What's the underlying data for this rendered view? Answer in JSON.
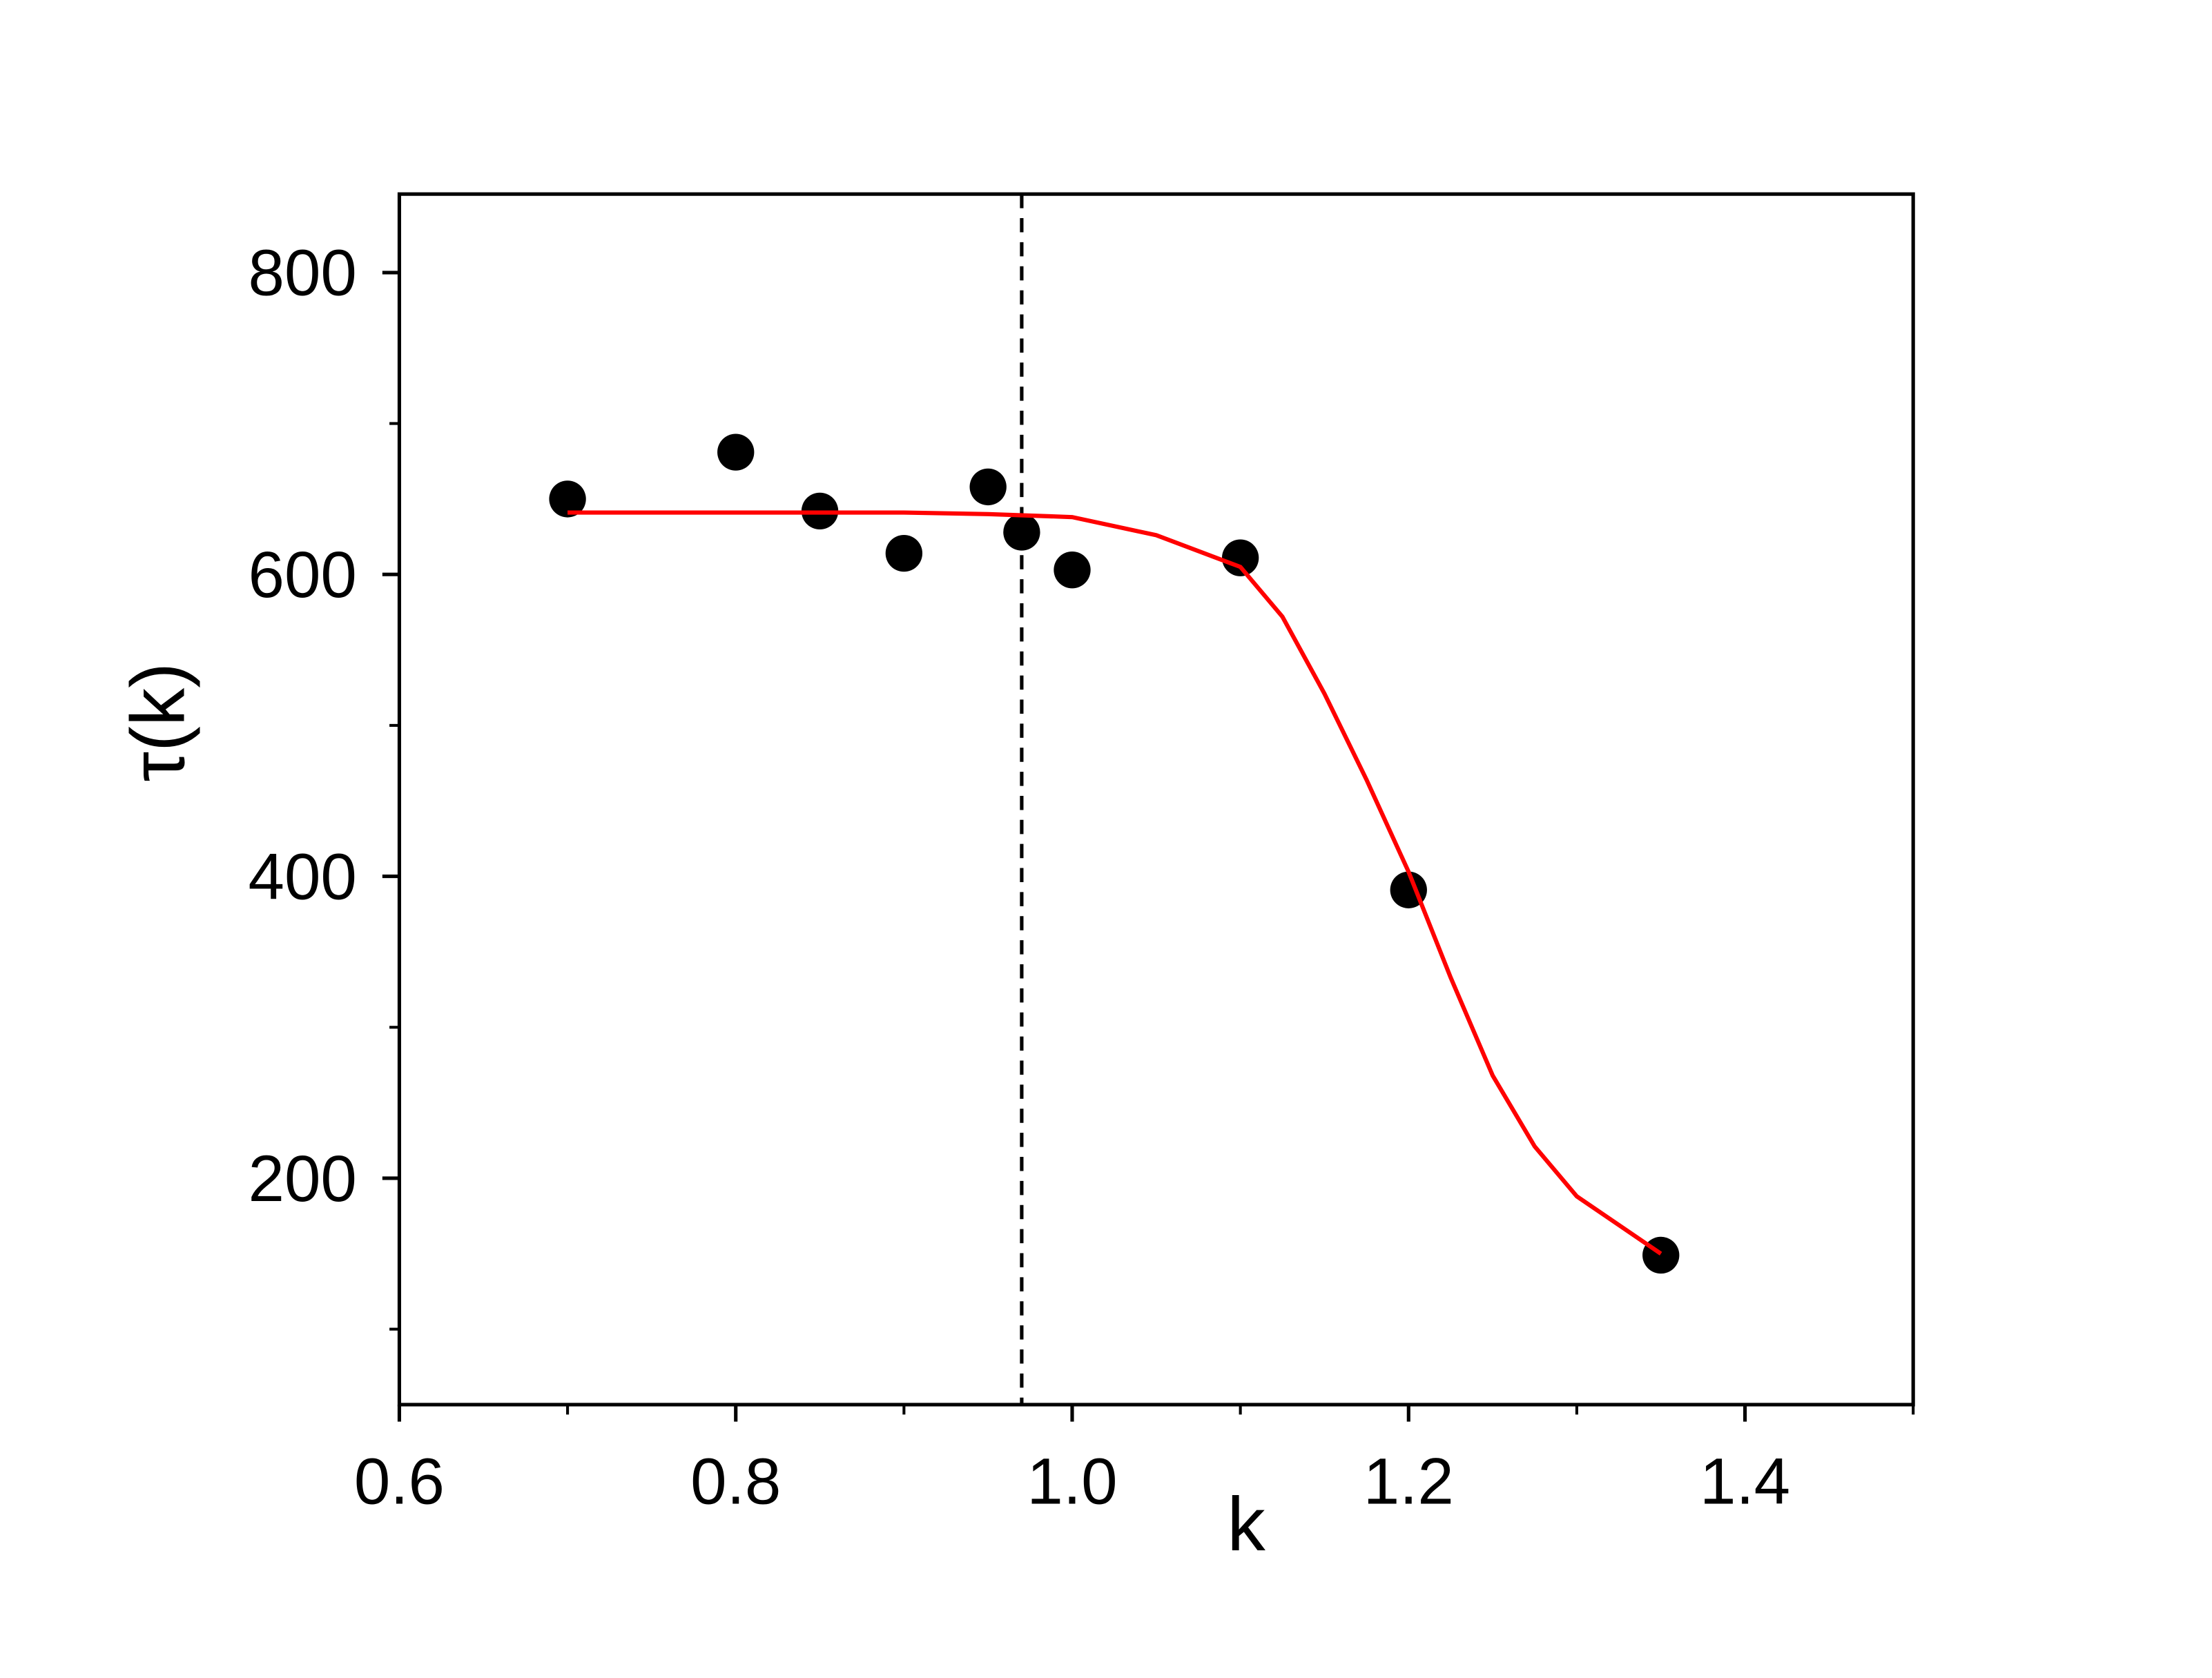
{
  "chart_data": {
    "type": "scatter",
    "x_label": "k",
    "y_label": "τ(k)",
    "xlim": [
      0.6,
      1.5
    ],
    "ylim": [
      50,
      852
    ],
    "xticks": [
      0.6,
      0.8,
      {
        "value": 1.0,
        "label": "1.0"
      },
      1.2,
      1.4
    ],
    "xminorticks": [
      0.7,
      0.9,
      1.1,
      1.3,
      1.5
    ],
    "yticks": [
      200,
      400,
      600,
      800
    ],
    "yminorticks": [
      100,
      300,
      500,
      700
    ],
    "vline": {
      "x": 0.97,
      "color": "#000000",
      "dashed": true
    },
    "series": [
      {
        "kind": "points",
        "color": "#000000",
        "x": [
          0.7,
          0.8,
          0.85,
          0.9,
          0.95,
          0.97,
          1.0,
          1.1,
          1.2,
          1.35
        ],
        "values": [
          650,
          681,
          642,
          614,
          658,
          628,
          603,
          611,
          391,
          149
        ]
      },
      {
        "kind": "line",
        "color": "#ff0000",
        "x": [
          0.7,
          0.8,
          0.9,
          0.95,
          1.0,
          1.05,
          1.1,
          1.125,
          1.15,
          1.175,
          1.2,
          1.225,
          1.25,
          1.275,
          1.3,
          1.35
        ],
        "values": [
          641,
          641,
          641,
          640,
          638,
          626,
          605,
          572,
          521,
          464,
          403,
          333,
          268,
          221,
          188,
          150
        ]
      }
    ]
  }
}
